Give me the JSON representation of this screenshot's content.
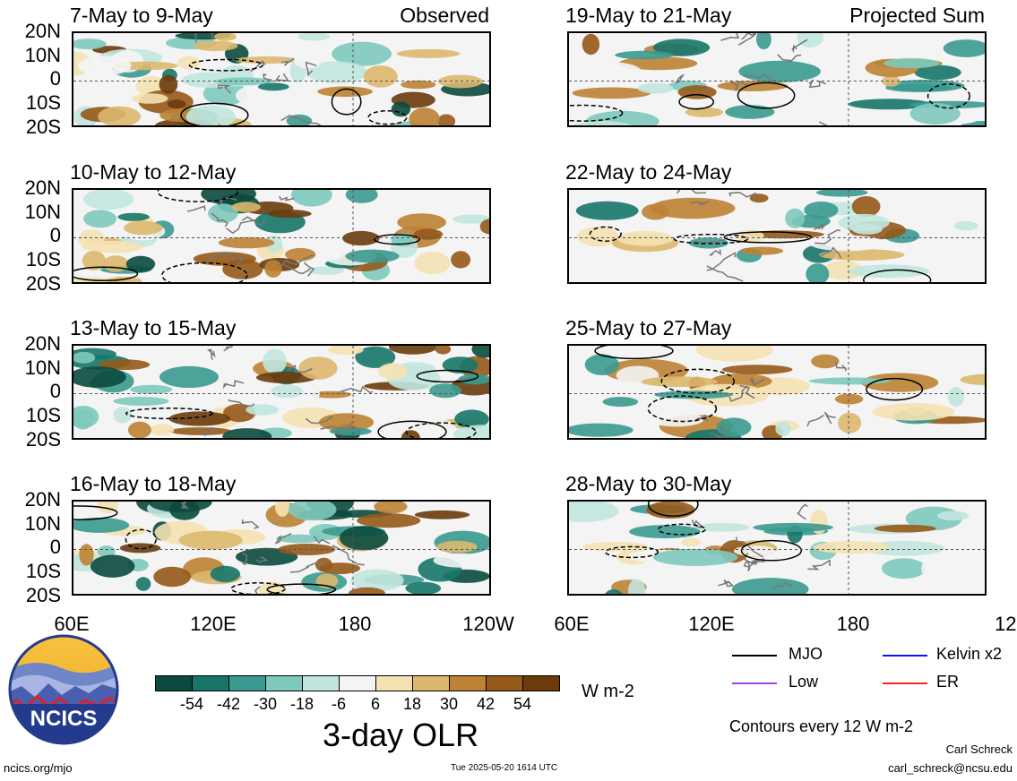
{
  "panels": [
    {
      "title": "7-May to 9-May",
      "tag": "Observed"
    },
    {
      "title": "10-May to 12-May",
      "tag": ""
    },
    {
      "title": "13-May to 15-May",
      "tag": ""
    },
    {
      "title": "16-May to 18-May",
      "tag": ""
    },
    {
      "title": "19-May to 21-May",
      "tag": "Projected Sum"
    },
    {
      "title": "22-May to 24-May",
      "tag": ""
    },
    {
      "title": "25-May to 27-May",
      "tag": ""
    },
    {
      "title": "28-May to 30-May",
      "tag": ""
    }
  ],
  "lat_labels": [
    "20N",
    "10N",
    "0",
    "10S",
    "20S"
  ],
  "lon_labels": [
    "60E",
    "120E",
    "180",
    "120W"
  ],
  "colorbar": {
    "ticks": [
      "-54",
      "-42",
      "-30",
      "-18",
      "-6",
      "6",
      "18",
      "30",
      "42",
      "54"
    ],
    "colors": [
      "#0b4a3e",
      "#17756a",
      "#3b9a8f",
      "#7ec9bd",
      "#c2e6df",
      "#f4f4f4",
      "#f5e2b3",
      "#dbb86d",
      "#bd8234",
      "#95591a",
      "#6b3b0c"
    ],
    "units": "W m-2",
    "title": "3-day OLR"
  },
  "legend": {
    "items": [
      {
        "label": "MJO",
        "color": "#000000"
      },
      {
        "label": "Kelvin x2",
        "color": "#1010ff"
      },
      {
        "label": "Low",
        "color": "#a040e0"
      },
      {
        "label": "ER",
        "color": "#ff2020"
      }
    ],
    "contours_note": "Contours every 12 W m-2"
  },
  "logo_text": "NCICS",
  "footer": {
    "url": "ncics.org/mjo",
    "timestamp": "Tue 2025-05-20 1614 UTC",
    "author": "Carl Schreck",
    "email": "carl_schreck@ncsu.edu"
  }
}
